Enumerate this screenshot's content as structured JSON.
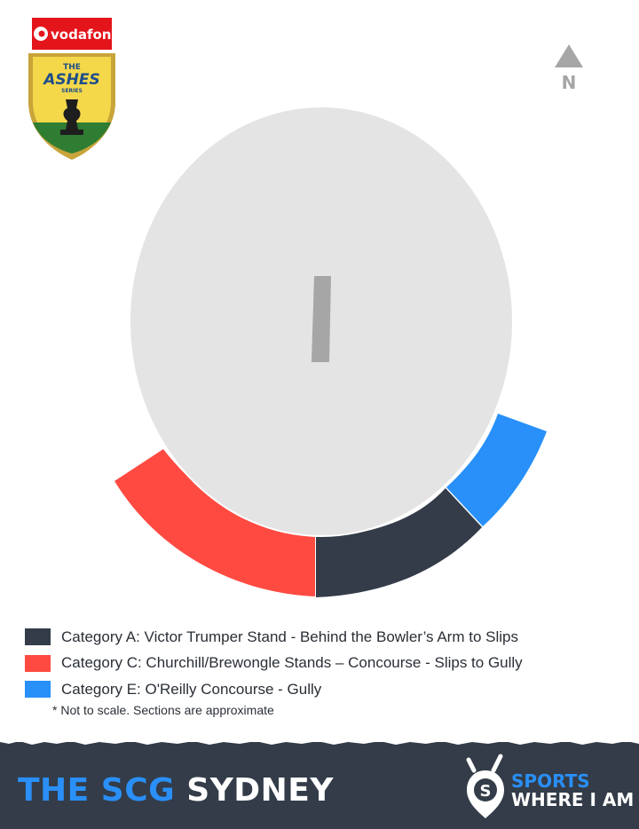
{
  "sponsor": {
    "name": "vodafone",
    "logo_text": "vodafone"
  },
  "event_logo": {
    "line1": "THE",
    "line2": "ASHES",
    "line3": "SERIES"
  },
  "compass": {
    "label": "N"
  },
  "colors": {
    "category_a": "#333c48",
    "category_c": "#ff4a42",
    "category_e": "#2890f8",
    "field": "#e4e4e4",
    "pitch": "#a6a6a6",
    "footer": "#333c48",
    "accent": "#2a8ff7"
  },
  "legend": {
    "items": [
      {
        "label": "Category A: Victor Trumper Stand - Behind the Bowler’s Arm to Slips",
        "color": "#333c48"
      },
      {
        "label": "Category C: Churchill/Brewongle Stands – Concourse - Slips to Gully",
        "color": "#ff4a42"
      },
      {
        "label": "Category E: O'Reilly Concourse - Gully",
        "color": "#2890f8"
      }
    ],
    "note": "* Not to scale. Sections are approximate"
  },
  "footer": {
    "venue_accent": "THE SCG",
    "venue_city": "SYDNEY",
    "brand_line1": "SPORTS",
    "brand_line2": "WHERE I AM"
  }
}
